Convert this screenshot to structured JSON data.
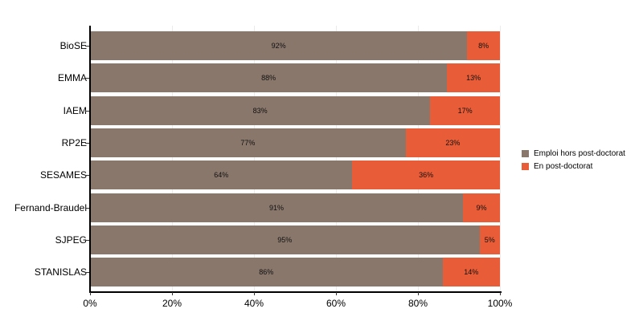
{
  "chart_data": {
    "type": "bar",
    "orientation": "horizontal",
    "stacked": true,
    "normalized": true,
    "categories": [
      "BioSE",
      "EMMA",
      "IAEM",
      "RP2E",
      "SESAMES",
      "Fernand-Braudel",
      "SJPEG",
      "STANISLAS"
    ],
    "series": [
      {
        "name": "Emploi hors post-doctorat",
        "color": "#89776b",
        "values": [
          92,
          88,
          83,
          77,
          64,
          91,
          95,
          86
        ],
        "labels": [
          "92%",
          "88%",
          "83%",
          "77%",
          "64%",
          "91%",
          "95%",
          "86%"
        ]
      },
      {
        "name": "En post-doctorat",
        "color": "#e85c37",
        "values": [
          8,
          13,
          17,
          23,
          36,
          9,
          5,
          14
        ],
        "labels": [
          "8%",
          "13%",
          "17%",
          "23%",
          "36%",
          "9%",
          "5%",
          "14%"
        ]
      }
    ],
    "title": "",
    "xlabel": "",
    "ylabel": "",
    "xlim": [
      0,
      100
    ],
    "x_ticks": [
      "0%",
      "20%",
      "40%",
      "60%",
      "80%",
      "100%"
    ],
    "grid": "vertical",
    "legend_position": "right"
  }
}
